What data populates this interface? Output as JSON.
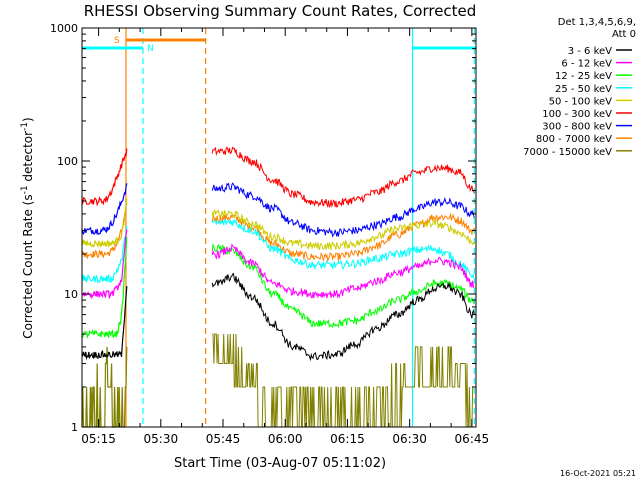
{
  "chart_data": {
    "type": "line",
    "title": "RHESSI Observing Summary Count Rates, Corrected",
    "xlabel": "Start Time (03-Aug-07 05:11:02)",
    "ylabel_main": "Corrected Count Rate (s",
    "ylabel_sup1": "-1",
    "ylabel_mid": " detector",
    "ylabel_sup2": "-1",
    "ylabel_end": ")",
    "yscale": "log",
    "ylim": [
      1,
      1000
    ],
    "xlim_minutes": [
      0,
      95
    ],
    "x_ticks": [
      {
        "minute": 4,
        "label": "05:15"
      },
      {
        "minute": 19,
        "label": "05:30"
      },
      {
        "minute": 34,
        "label": "05:45"
      },
      {
        "minute": 49,
        "label": "06:00"
      },
      {
        "minute": 64,
        "label": "06:15"
      },
      {
        "minute": 79,
        "label": "06:30"
      },
      {
        "minute": 94,
        "label": "06:45"
      }
    ],
    "y_ticks": [
      {
        "value": 1,
        "label": "1"
      },
      {
        "value": 10,
        "label": "10"
      },
      {
        "value": 100,
        "label": "100"
      },
      {
        "value": 1000,
        "label": "1000"
      }
    ],
    "legend_header": [
      "Det 1,3,4,5,6,9,",
      "Att 0"
    ],
    "legend_placement": "right",
    "timestamp": "16-Oct-2021 05:21",
    "series": [
      {
        "name": "3 - 6 keV",
        "color": "#000000",
        "pre": [
          3.5,
          3.5,
          3.5,
          3.5,
          3.5,
          3.5,
          3.5,
          3.5,
          3.5,
          12.0
        ],
        "post": [
          [
            33,
            12.0
          ],
          [
            36,
            13.5
          ],
          [
            41,
            9.5
          ],
          [
            46,
            6.0
          ],
          [
            51,
            4.0
          ],
          [
            56,
            3.4
          ],
          [
            61,
            3.5
          ],
          [
            66,
            4.2
          ],
          [
            71,
            5.5
          ],
          [
            76,
            7.0
          ],
          [
            81,
            9.0
          ],
          [
            85,
            11.0
          ],
          [
            88,
            11.5
          ],
          [
            91,
            10.0
          ],
          [
            94,
            7.0
          ]
        ]
      },
      {
        "name": "6 - 12 keV",
        "color": "#ff00ff",
        "pre": [
          10.0,
          10.0,
          10.0,
          10.0,
          10.0,
          10.0,
          10.0,
          11.0,
          13.0,
          30.0
        ],
        "post": [
          [
            33,
            20.0
          ],
          [
            36,
            22.0
          ],
          [
            41,
            17.0
          ],
          [
            46,
            12.0
          ],
          [
            51,
            10.5
          ],
          [
            56,
            10.0
          ],
          [
            61,
            10.0
          ],
          [
            66,
            11.0
          ],
          [
            71,
            12.5
          ],
          [
            76,
            14.5
          ],
          [
            81,
            16.0
          ],
          [
            85,
            18.0
          ],
          [
            88,
            17.5
          ],
          [
            91,
            16.0
          ],
          [
            94,
            12.0
          ]
        ]
      },
      {
        "name": "12 - 25 keV",
        "color": "#00ff00",
        "pre": [
          5.0,
          5.0,
          5.0,
          5.0,
          5.0,
          5.0,
          5.0,
          5.0,
          7.0,
          26.0
        ],
        "post": [
          [
            33,
            22.0
          ],
          [
            36,
            21.0
          ],
          [
            41,
            16.0
          ],
          [
            46,
            10.0
          ],
          [
            51,
            7.5
          ],
          [
            56,
            6.0
          ],
          [
            61,
            6.0
          ],
          [
            66,
            6.3
          ],
          [
            71,
            7.5
          ],
          [
            76,
            9.0
          ],
          [
            81,
            10.5
          ],
          [
            85,
            12.0
          ],
          [
            88,
            12.0
          ],
          [
            91,
            11.0
          ],
          [
            94,
            9.0
          ]
        ]
      },
      {
        "name": "25 - 50 keV",
        "color": "#00ffff",
        "pre": [
          13.0,
          13.0,
          13.0,
          13.0,
          13.0,
          13.0,
          13.0,
          15.0,
          18.0,
          33.0
        ],
        "post": [
          [
            33,
            34.0
          ],
          [
            36,
            35.0
          ],
          [
            41,
            30.0
          ],
          [
            46,
            22.0
          ],
          [
            51,
            18.0
          ],
          [
            56,
            16.5
          ],
          [
            61,
            16.5
          ],
          [
            66,
            17.0
          ],
          [
            71,
            18.5
          ],
          [
            76,
            20.0
          ],
          [
            81,
            21.5
          ],
          [
            85,
            22.0
          ],
          [
            88,
            20.0
          ],
          [
            91,
            17.0
          ],
          [
            94,
            14.0
          ]
        ]
      },
      {
        "name": "50 - 100 keV",
        "color": "#cccc00",
        "pre": [
          24.0,
          24.0,
          24.0,
          24.0,
          24.0,
          24.0,
          24.0,
          25.0,
          28.0,
          50.0
        ],
        "post": [
          [
            33,
            40.0
          ],
          [
            36,
            40.0
          ],
          [
            41,
            34.0
          ],
          [
            46,
            27.0
          ],
          [
            51,
            24.0
          ],
          [
            56,
            23.0
          ],
          [
            61,
            23.0
          ],
          [
            66,
            24.0
          ],
          [
            71,
            27.0
          ],
          [
            76,
            31.0
          ],
          [
            81,
            33.0
          ],
          [
            85,
            34.0
          ],
          [
            88,
            32.0
          ],
          [
            91,
            29.0
          ],
          [
            94,
            25.0
          ]
        ]
      },
      {
        "name": "100 - 300 keV",
        "color": "#ff0000",
        "pre": [
          50.0,
          50.0,
          50.0,
          50.0,
          50.0,
          52.0,
          60.0,
          75.0,
          95.0,
          118.0
        ],
        "post": [
          [
            33,
            118.0
          ],
          [
            36,
            120.0
          ],
          [
            41,
            100.0
          ],
          [
            46,
            72.0
          ],
          [
            51,
            56.0
          ],
          [
            56,
            49.0
          ],
          [
            61,
            48.0
          ],
          [
            66,
            51.0
          ],
          [
            71,
            58.0
          ],
          [
            76,
            70.0
          ],
          [
            81,
            82.0
          ],
          [
            85,
            89.0
          ],
          [
            88,
            88.0
          ],
          [
            91,
            82.0
          ],
          [
            94,
            62.0
          ]
        ]
      },
      {
        "name": "300 - 800 keV",
        "color": "#0000ff",
        "pre": [
          30.0,
          30.0,
          30.0,
          30.0,
          30.0,
          31.0,
          34.0,
          40.0,
          50.0,
          65.0
        ],
        "post": [
          [
            33,
            62.0
          ],
          [
            36,
            64.0
          ],
          [
            41,
            55.0
          ],
          [
            46,
            44.0
          ],
          [
            51,
            34.0
          ],
          [
            56,
            30.0
          ],
          [
            61,
            29.0
          ],
          [
            66,
            30.0
          ],
          [
            71,
            33.0
          ],
          [
            76,
            38.0
          ],
          [
            81,
            44.0
          ],
          [
            85,
            49.0
          ],
          [
            88,
            49.0
          ],
          [
            91,
            46.0
          ],
          [
            94,
            40.0
          ]
        ]
      },
      {
        "name": "800 - 7000 keV",
        "color": "#ff8000",
        "pre": [
          20.0,
          20.0,
          20.0,
          20.0,
          20.0,
          20.0,
          21.0,
          24.0,
          30.0,
          46.0
        ],
        "post": [
          [
            33,
            37.0
          ],
          [
            36,
            38.0
          ],
          [
            41,
            32.0
          ],
          [
            46,
            24.0
          ],
          [
            51,
            20.0
          ],
          [
            56,
            19.0
          ],
          [
            61,
            19.0
          ],
          [
            66,
            20.0
          ],
          [
            71,
            23.0
          ],
          [
            76,
            28.0
          ],
          [
            81,
            33.0
          ],
          [
            85,
            38.0
          ],
          [
            88,
            38.0
          ],
          [
            91,
            36.0
          ],
          [
            94,
            30.0
          ]
        ]
      },
      {
        "name": "7000 - 15000 keV",
        "color": "#808000",
        "pre": [
          1.0,
          1.0,
          1.0,
          1.5,
          1.0,
          2.0,
          1.5,
          1.0,
          1.0,
          2.0
        ],
        "post": [
          [
            33,
            3.3
          ],
          [
            36,
            3.2
          ],
          [
            41,
            2.0
          ],
          [
            46,
            1.4
          ],
          [
            51,
            1.0
          ],
          [
            56,
            1.0
          ],
          [
            61,
            1.0
          ],
          [
            66,
            1.2
          ],
          [
            71,
            1.4
          ],
          [
            76,
            1.8
          ],
          [
            81,
            2.5
          ],
          [
            85,
            2.8
          ],
          [
            88,
            2.6
          ],
          [
            91,
            2.0
          ],
          [
            94,
            1.6
          ]
        ]
      }
    ],
    "flags": [
      {
        "label": "S",
        "color": "#ff8000",
        "start_minute": 10.6,
        "end_minute": 29.8
      },
      {
        "label": "N",
        "color": "#00ffff",
        "start_minute": 0,
        "end_minute": 14.7
      },
      {
        "label": "",
        "color": "#00ffff",
        "start_minute": 79.7,
        "end_minute": 95
      }
    ],
    "vertical_markers": [
      {
        "minute": 14.7,
        "color": "#00ffff",
        "style": "dashed"
      },
      {
        "minute": 29.8,
        "color": "#ff8000",
        "style": "dashed"
      },
      {
        "minute": 94.6,
        "color": "#00ffff",
        "style": "dashed"
      },
      {
        "minute": 79.7,
        "color": "#00ffff",
        "style": "solid"
      },
      {
        "minute": 10.6,
        "color": "#ff8000",
        "style": "solid"
      }
    ],
    "data_gap_minutes": [
      10.8,
      31.4
    ]
  }
}
